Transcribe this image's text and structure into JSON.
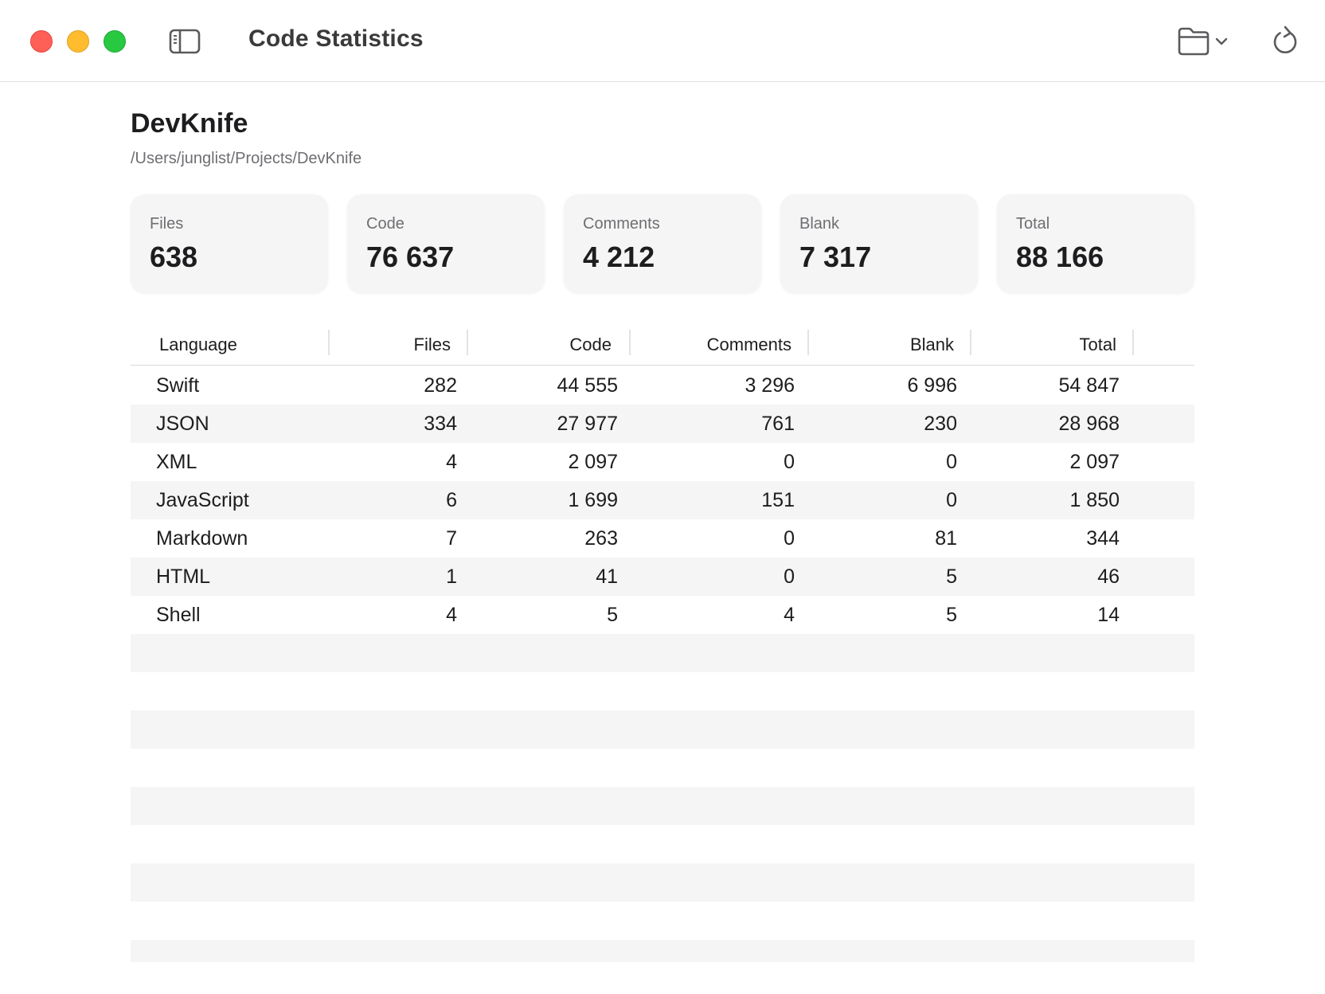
{
  "window": {
    "title": "Code Statistics"
  },
  "project": {
    "name": "DevKnife",
    "path": "/Users/junglist/Projects/DevKnife"
  },
  "summary": [
    {
      "label": "Files",
      "value": "638"
    },
    {
      "label": "Code",
      "value": "76 637"
    },
    {
      "label": "Comments",
      "value": "4 212"
    },
    {
      "label": "Blank",
      "value": "7 317"
    },
    {
      "label": "Total",
      "value": "88 166"
    }
  ],
  "table": {
    "columns": [
      "Language",
      "Files",
      "Code",
      "Comments",
      "Blank",
      "Total"
    ],
    "rows": [
      [
        "Swift",
        "282",
        "44 555",
        "3 296",
        "6 996",
        "54 847"
      ],
      [
        "JSON",
        "334",
        "27 977",
        "761",
        "230",
        "28 968"
      ],
      [
        "XML",
        "4",
        "2 097",
        "0",
        "0",
        "2 097"
      ],
      [
        "JavaScript",
        "6",
        "1 699",
        "151",
        "0",
        "1 850"
      ],
      [
        "Markdown",
        "7",
        "263",
        "0",
        "81",
        "344"
      ],
      [
        "HTML",
        "1",
        "41",
        "0",
        "5",
        "46"
      ],
      [
        "Shell",
        "4",
        "5",
        "4",
        "5",
        "14"
      ]
    ]
  },
  "colors": {
    "close": "#fe5f57",
    "minimize": "#febc2e",
    "maximize": "#28c840",
    "card_bg": "#f5f5f5",
    "row_alt": "#f5f5f5"
  },
  "icons": {
    "sidebar": "sidebar-left-icon",
    "folder": "folder-icon",
    "chevron": "chevron-down-icon",
    "refresh": "refresh-icon"
  }
}
